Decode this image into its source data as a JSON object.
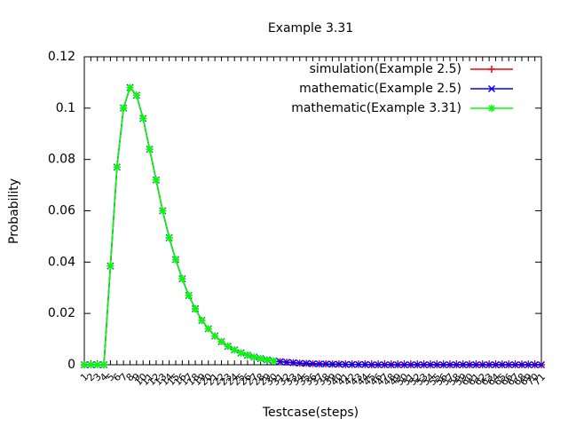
{
  "chart_data": {
    "type": "line",
    "title": "Example 3.31",
    "xlabel": "Testcase(steps)",
    "ylabel": "Probability",
    "categories": [
      1,
      2,
      3,
      4,
      5,
      6,
      7,
      8,
      9,
      10,
      11,
      12,
      13,
      14,
      15,
      16,
      17,
      18,
      19,
      20,
      21,
      22,
      23,
      24,
      25,
      26,
      27,
      28,
      29,
      30,
      31,
      32,
      33,
      34,
      35,
      36,
      37,
      38,
      39,
      40,
      41,
      42,
      43,
      44,
      45,
      46,
      47,
      48,
      49,
      50,
      51,
      52,
      53,
      54,
      55,
      56,
      57,
      58,
      59,
      60,
      61,
      62,
      63,
      64,
      65,
      66,
      67,
      68,
      69,
      70,
      71
    ],
    "series": [
      {
        "name": "simulation(Example 2.5)",
        "color": "#ff0000",
        "marker": "plus",
        "values": [
          0,
          0,
          0,
          0,
          0.0385,
          0.077,
          0.1,
          0.108,
          0.105,
          0.096,
          0.084,
          0.072,
          0.06,
          0.0495,
          0.041,
          0.0335,
          0.027,
          0.0218,
          0.0173,
          0.014,
          0.0112,
          0.009,
          0.0072,
          0.0058,
          0.0046,
          0.0037,
          0.003,
          0.0024,
          0.0019,
          0.0015,
          0.0012,
          0.001,
          0.0008,
          0.0006,
          0.0005,
          0.0004,
          0.0003,
          0.0003,
          0.0002,
          0.0002,
          0.0001,
          0.0001,
          0.0001,
          0.0001,
          0,
          0,
          0,
          0,
          0,
          0,
          0,
          0,
          0,
          0,
          0,
          0,
          0,
          0,
          0,
          0,
          0,
          0,
          0,
          0,
          0,
          0,
          0,
          0,
          0,
          0,
          0
        ]
      },
      {
        "name": "mathematic(Example 2.5)",
        "color": "#0000ff",
        "marker": "cross",
        "values": [
          0,
          0,
          0,
          0,
          0.0385,
          0.077,
          0.1,
          0.108,
          0.105,
          0.096,
          0.084,
          0.072,
          0.06,
          0.0495,
          0.041,
          0.0335,
          0.027,
          0.0218,
          0.0173,
          0.014,
          0.0112,
          0.009,
          0.0072,
          0.0058,
          0.0046,
          0.0037,
          0.003,
          0.0024,
          0.0019,
          0.0015,
          0.0012,
          0.001,
          0.0008,
          0.0006,
          0.0005,
          0.0004,
          0.0003,
          0.0003,
          0.0002,
          0.0002,
          0.0001,
          0.0001,
          0.0001,
          0.0001,
          0,
          0,
          0,
          0,
          0,
          0,
          0,
          0,
          0,
          0,
          0,
          0,
          0,
          0,
          0,
          0,
          0,
          0,
          0,
          0,
          0,
          0,
          0,
          0,
          0,
          0,
          0
        ]
      },
      {
        "name": "mathematic(Example 3.31)",
        "color": "#00ff00",
        "marker": "star",
        "values": [
          0,
          0,
          0,
          0,
          0.0385,
          0.077,
          0.1,
          0.108,
          0.105,
          0.096,
          0.084,
          0.072,
          0.06,
          0.0495,
          0.041,
          0.0335,
          0.027,
          0.0218,
          0.0173,
          0.014,
          0.0112,
          0.009,
          0.0072,
          0.0058,
          0.0046,
          0.0037,
          0.003,
          0.0024,
          0.0019,
          0.0015,
          null,
          null,
          null,
          null,
          null,
          null,
          null,
          null,
          null,
          null,
          null,
          null,
          null,
          null,
          null,
          null,
          null,
          null,
          null,
          null,
          null,
          null,
          null,
          null,
          null,
          null,
          null,
          null,
          null,
          null,
          null,
          null,
          null,
          null,
          null,
          null,
          null,
          null,
          null,
          null,
          null
        ]
      }
    ],
    "ylim": [
      0,
      0.12
    ],
    "yticks": [
      0,
      0.02,
      0.04,
      0.06,
      0.08,
      0.1,
      0.12
    ],
    "legend": "top-right"
  }
}
